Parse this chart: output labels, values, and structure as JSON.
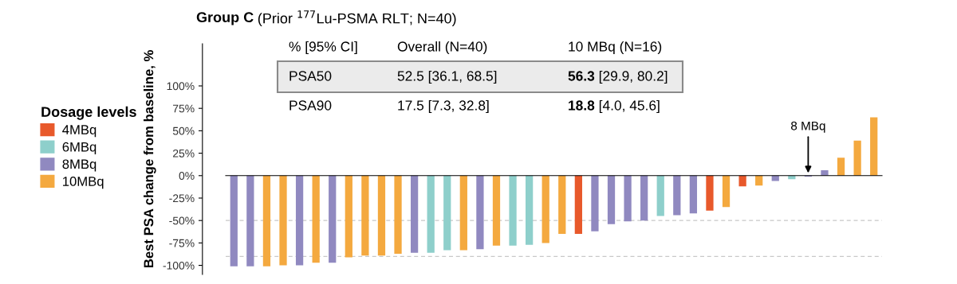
{
  "chart_data": {
    "type": "bar",
    "title": "Group C",
    "subtitle": "(Prior $^{177}$Lu-PSMA RLT; N=40)",
    "ylabel": "Best PSA change from baseline, %",
    "legend_title": "Dosage levels",
    "legend": "left",
    "stacked": true,
    "categories": [
      null,
      null,
      null,
      null,
      null,
      null,
      null,
      null,
      null,
      null,
      null,
      null,
      null,
      null,
      null,
      null,
      null,
      null,
      null,
      null,
      null,
      null,
      null,
      null,
      null,
      null,
      null,
      null,
      null,
      null,
      null,
      null,
      null,
      null,
      null,
      null,
      null,
      null,
      null,
      null
    ],
    "series": [
      {
        "name": "4MBq",
        "color": "#e8592b",
        "values": [
          null,
          null,
          null,
          null,
          null,
          null,
          null,
          null,
          null,
          null,
          null,
          null,
          null,
          null,
          null,
          null,
          null,
          null,
          null,
          null,
          null,
          -65,
          null,
          null,
          null,
          null,
          null,
          null,
          null,
          -39,
          null,
          -12,
          null,
          null,
          null,
          null,
          null,
          null,
          null,
          null
        ]
      },
      {
        "name": "6MBq",
        "color": "#8ecfcb",
        "values": [
          null,
          null,
          null,
          null,
          null,
          null,
          null,
          null,
          null,
          null,
          null,
          null,
          -86,
          -83,
          null,
          null,
          null,
          -78,
          -77,
          null,
          null,
          null,
          null,
          null,
          null,
          null,
          -45,
          null,
          null,
          null,
          null,
          null,
          null,
          null,
          -4,
          null,
          null,
          null,
          null,
          null
        ]
      },
      {
        "name": "8MBq",
        "color": "#9089c0",
        "values": [
          -101,
          -101,
          null,
          null,
          -100,
          null,
          -97,
          null,
          null,
          null,
          null,
          -86,
          null,
          null,
          null,
          -82,
          null,
          null,
          null,
          null,
          null,
          null,
          -62,
          -54,
          -51,
          -50,
          null,
          -44,
          -42,
          null,
          null,
          null,
          null,
          -6,
          null,
          -1,
          6,
          null,
          null,
          null
        ]
      },
      {
        "name": "10MBq",
        "color": "#f4a93f",
        "values": [
          null,
          null,
          -101,
          -100,
          null,
          -97,
          null,
          -91,
          -89,
          -89,
          -87,
          null,
          null,
          null,
          -83,
          null,
          -78,
          null,
          null,
          -75,
          -65,
          null,
          null,
          null,
          null,
          null,
          null,
          null,
          null,
          null,
          -35,
          null,
          -11,
          null,
          null,
          null,
          null,
          20,
          39,
          65
        ]
      }
    ],
    "ylim": [
      -110,
      147
    ],
    "yticks": [
      {
        "value": -100,
        "label": "-100%"
      },
      {
        "value": -75,
        "label": "-75%"
      },
      {
        "value": -50,
        "label": "-50%"
      },
      {
        "value": -25,
        "label": "-25%"
      },
      {
        "value": 0,
        "label": "0%"
      },
      {
        "value": 25,
        "label": "25%"
      },
      {
        "value": 50,
        "label": "50%"
      },
      {
        "value": 75,
        "label": "75%"
      },
      {
        "value": 100,
        "label": "100%"
      }
    ],
    "ref_lines": [
      {
        "axis": "y",
        "value": -50,
        "color": "#c8c8c8",
        "line_style": "dashed"
      },
      {
        "axis": "y",
        "value": -90,
        "color": "#c8c8c8",
        "line_style": "dashed"
      }
    ],
    "grid": false,
    "annotations": [
      "% [95% CI]",
      "Overall (N=40)",
      "10 MBq (N=16)",
      "PSA50",
      "52.5 [36.1, 68.5]",
      "56.3 [29.9, 80.2]",
      "PSA90",
      "17.5 [7.3, 32.8]",
      "18.8 [4.0, 45.6]",
      {
        "text": "8 MBq",
        "y": -1
      }
    ]
  }
}
